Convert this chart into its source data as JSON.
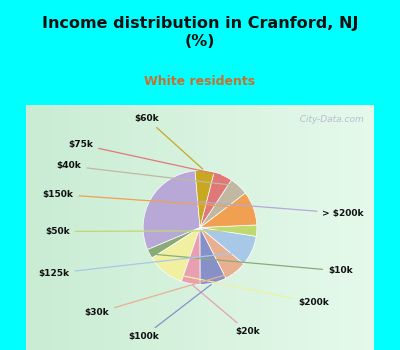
{
  "title": "Income distribution in Cranford, NJ\n(%)",
  "subtitle": "White residents",
  "title_color": "#111111",
  "subtitle_color": "#c87030",
  "background_top": "#00ffff",
  "background_chart_left": "#d0ece0",
  "background_chart_right": "#e8f4f0",
  "labels": [
    "> $200k",
    "$10k",
    "$200k",
    "$20k",
    "$100k",
    "$30k",
    "$125k",
    "$50k",
    "$150k",
    "$40k",
    "$75k",
    "$60k"
  ],
  "values": [
    28,
    2.5,
    10,
    5,
    7,
    6,
    8,
    3,
    9,
    5,
    5,
    5
  ],
  "colors": [
    "#b8a8d8",
    "#8aaa7a",
    "#f0f0a0",
    "#e8a0b0",
    "#8890c8",
    "#e8b090",
    "#a8c8e8",
    "#c0d870",
    "#f0a050",
    "#c0b8a0",
    "#e07878",
    "#c8a820"
  ],
  "startangle": 95,
  "watermark": "  City-Data.com"
}
